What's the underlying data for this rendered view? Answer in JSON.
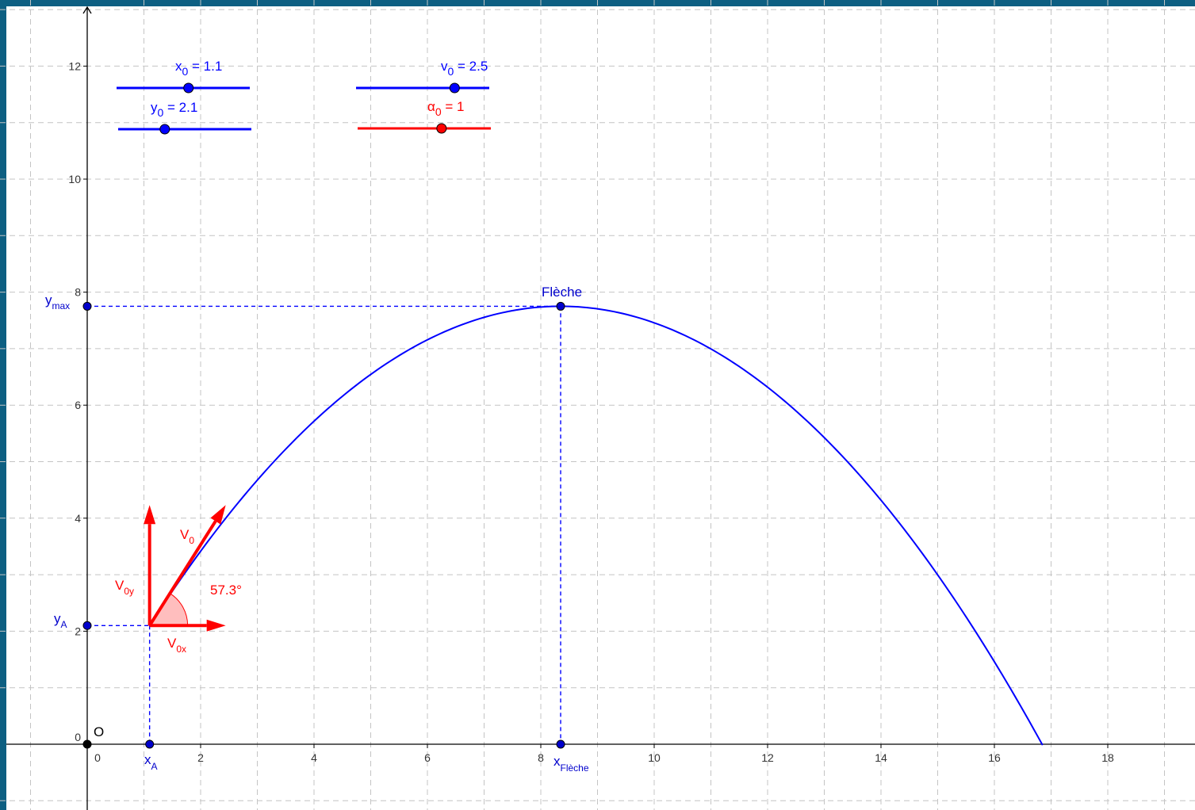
{
  "colors": {
    "frame": "#0d5f82",
    "grid": "#c4c4c4",
    "axis": "#000000",
    "blue": "#0000ff",
    "point": "#0000cc",
    "red": "#ff0000",
    "angle_fill": "#ffb3b3"
  },
  "axes": {
    "x_ticks": [
      "0",
      "2",
      "4",
      "6",
      "8",
      "10",
      "12",
      "14",
      "16",
      "18"
    ],
    "y_ticks": [
      "0",
      "2",
      "4",
      "6",
      "8",
      "10",
      "12"
    ],
    "origin_label": "O"
  },
  "sliders": [
    {
      "id": "x0",
      "name": "x",
      "sub": "0",
      "value_text": "= 1.1",
      "color": "blue",
      "fraction": 0.54
    },
    {
      "id": "y0",
      "name": "y",
      "sub": "0",
      "value_text": "= 2.1",
      "color": "blue",
      "fraction": 0.35
    },
    {
      "id": "v0",
      "name": "v",
      "sub": "0",
      "value_text": "= 2.5",
      "color": "blue",
      "fraction": 0.74
    },
    {
      "id": "a0",
      "name": "α",
      "sub": "0",
      "value_text": "= 1",
      "color": "red",
      "fraction": 0.63
    }
  ],
  "model": {
    "x0": 1.1,
    "y0": 2.1,
    "y_top": 7.75,
    "x_top": 8.35,
    "x_land": 16.85
  },
  "labels": {
    "fleche": "Flèche",
    "x_a": {
      "main": "x",
      "sub": "A"
    },
    "y_a": {
      "main": "y",
      "sub": "A"
    },
    "y_max": {
      "main": "y",
      "sub": "max"
    },
    "x_fleche": {
      "main": "x",
      "sub": "Flèche"
    },
    "v0": {
      "main": "V",
      "sub": "0"
    },
    "v0x": {
      "main": "V",
      "sub": "0x"
    },
    "v0y": {
      "main": "V",
      "sub": "0y"
    },
    "angle": "57.3°"
  }
}
